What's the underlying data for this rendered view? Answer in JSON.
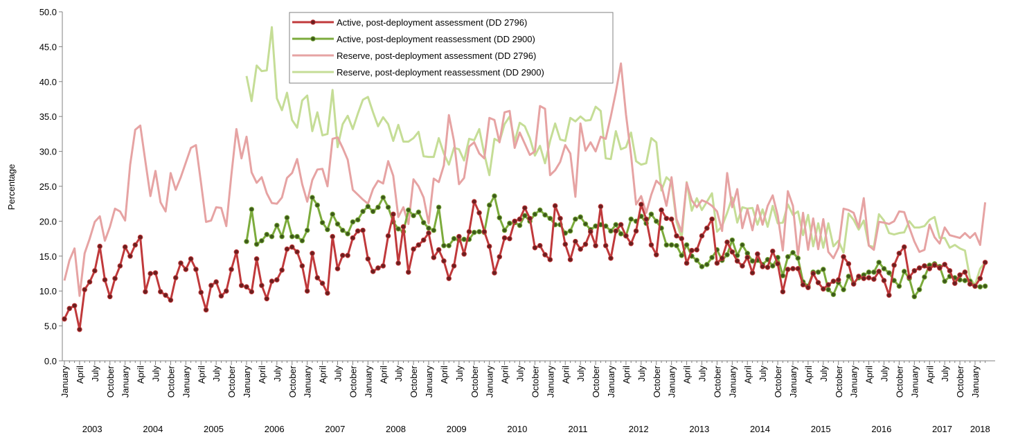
{
  "chart_data": {
    "type": "line",
    "y_label": "Percentage",
    "ylim": [
      0,
      50
    ],
    "yticks": [
      {
        "value": 0,
        "label": "0.0"
      },
      {
        "value": 5,
        "label": "5.0"
      },
      {
        "value": 10,
        "label": "10.0"
      },
      {
        "value": 15,
        "label": "15.0"
      },
      {
        "value": 20,
        "label": "20.0"
      },
      {
        "value": 25,
        "label": "25.0"
      },
      {
        "value": 30,
        "label": "30.0"
      },
      {
        "value": 35,
        "label": "35.0"
      },
      {
        "value": 40,
        "label": "40.0"
      },
      {
        "value": 45,
        "label": "45.0"
      },
      {
        "value": 50,
        "label": "50.0"
      }
    ],
    "grid": false,
    "legend": "top-center",
    "categories": [
      "January",
      null,
      null,
      "April",
      null,
      null,
      "July",
      null,
      null,
      "October",
      null,
      null,
      "January",
      null,
      null,
      "April",
      null,
      null,
      "July",
      null,
      null,
      "October",
      null,
      null,
      "January",
      null,
      null,
      "April",
      null,
      null,
      "July",
      null,
      null,
      "October",
      null,
      null,
      "January",
      null,
      null,
      "April",
      null,
      null,
      "July",
      null,
      null,
      "October",
      null,
      null,
      "January",
      null,
      null,
      "April",
      null,
      null,
      "July",
      null,
      null,
      "October",
      null,
      null,
      "January",
      null,
      null,
      "April",
      null,
      null,
      "July",
      null,
      null,
      "October",
      null,
      null,
      "January",
      null,
      null,
      "April",
      null,
      null,
      "July",
      null,
      null,
      "October",
      null,
      null,
      "January",
      null,
      null,
      "April",
      null,
      null,
      "July",
      null,
      null,
      "October",
      null,
      null,
      "January",
      null,
      null,
      "April",
      null,
      null,
      "July",
      null,
      null,
      "October",
      null,
      null,
      "January",
      null,
      null,
      "April",
      null,
      null,
      "July",
      null,
      null,
      "October",
      null,
      null,
      "January",
      null,
      null,
      "April",
      null,
      null,
      "July",
      null,
      null,
      "October",
      null,
      null,
      "January",
      null,
      null,
      "April",
      null,
      null,
      "July",
      null,
      null,
      "October",
      null,
      null,
      "January",
      null,
      null,
      "April",
      null,
      null,
      "July",
      null,
      null,
      "October",
      null,
      null,
      "January",
      null,
      null,
      "April",
      null,
      null,
      "July",
      null,
      null,
      "October",
      null,
      null,
      "January",
      null,
      null,
      "April",
      null,
      null,
      "July",
      null,
      null,
      "October",
      null,
      null,
      "January",
      null,
      null
    ],
    "years": [
      "2003",
      "2004",
      "2005",
      "2006",
      "2007",
      "2008",
      "2009",
      "2010",
      "2011",
      "2012",
      "2013",
      "2014",
      "2015",
      "2016",
      "2017",
      "2018"
    ],
    "series": [
      {
        "name": "Active, post-deployment assessment (DD 2796)",
        "color": "#c0393b",
        "marker_color": "#6b1f1f",
        "marker": true,
        "values": [
          6.0,
          7.5,
          7.9,
          4.5,
          10.2,
          11.3,
          12.9,
          16.4,
          11.6,
          9.2,
          11.8,
          13.6,
          16.3,
          15.0,
          16.6,
          17.7,
          9.9,
          12.5,
          12.6,
          9.9,
          9.4,
          8.7,
          11.9,
          14.0,
          13.1,
          14.6,
          13.1,
          9.8,
          7.3,
          10.8,
          11.3,
          9.3,
          10.0,
          13.1,
          15.6,
          10.8,
          10.6,
          9.9,
          14.6,
          10.8,
          8.9,
          11.4,
          11.6,
          13.0,
          16.0,
          16.3,
          15.6,
          13.6,
          10.0,
          15.4,
          11.9,
          11.1,
          9.7,
          17.8,
          13.2,
          15.1,
          15.1,
          17.6,
          18.6,
          18.7,
          14.6,
          12.8,
          13.3,
          13.6,
          17.9,
          21.0,
          14.0,
          19.2,
          12.7,
          16.0,
          16.6,
          17.3,
          18.3,
          14.8,
          15.9,
          14.3,
          11.8,
          13.6,
          17.8,
          15.3,
          18.5,
          22.8,
          21.2,
          18.5,
          16.4,
          12.6,
          14.9,
          17.6,
          17.5,
          20.0,
          20.3,
          21.9,
          20.4,
          16.2,
          16.5,
          15.2,
          14.5,
          22.2,
          20.4,
          16.7,
          14.5,
          17.1,
          16.0,
          16.7,
          18.5,
          16.5,
          22.1,
          16.5,
          14.7,
          18.6,
          19.5,
          17.9,
          16.8,
          18.6,
          22.4,
          20.3,
          16.6,
          15.2,
          21.6,
          20.4,
          20.3,
          17.9,
          17.5,
          14.0,
          15.8,
          15.9,
          17.9,
          19.0,
          20.3,
          14.0,
          14.7,
          17.0,
          15.6,
          14.3,
          13.6,
          14.8,
          12.6,
          15.3,
          13.5,
          13.4,
          15.7,
          13.9,
          9.9,
          13.1,
          13.2,
          13.2,
          10.9,
          10.5,
          12.5,
          11.2,
          10.3,
          10.9,
          11.4,
          11.6,
          14.9,
          13.9,
          11.0,
          12.1,
          11.8,
          11.9,
          11.7,
          12.8,
          11.5,
          9.4,
          13.7,
          15.4,
          16.3,
          12.0,
          12.9,
          13.3,
          13.6,
          13.2,
          13.7,
          13.3,
          13.8,
          12.9,
          11.1,
          12.3,
          12.7,
          11.0,
          10.7,
          11.8,
          14.1
        ]
      },
      {
        "name": "Active, post-deployment reassessment (DD 2900)",
        "color": "#7cab3c",
        "marker_color": "#3d5a1a",
        "marker": true,
        "values": [
          null,
          null,
          null,
          null,
          null,
          null,
          null,
          null,
          null,
          null,
          null,
          null,
          null,
          null,
          null,
          null,
          null,
          null,
          null,
          null,
          null,
          null,
          null,
          null,
          null,
          null,
          null,
          null,
          null,
          null,
          null,
          null,
          null,
          null,
          null,
          null,
          17.1,
          21.7,
          16.7,
          17.2,
          18.1,
          17.8,
          19.4,
          17.8,
          20.5,
          17.8,
          17.8,
          17.2,
          18.7,
          23.4,
          22.3,
          19.8,
          18.8,
          21.0,
          19.6,
          18.7,
          18.2,
          19.9,
          20.2,
          21.4,
          22.1,
          21.4,
          22.0,
          23.4,
          22.0,
          19.9,
          18.9,
          18.5,
          21.6,
          20.8,
          21.3,
          19.8,
          19.0,
          18.7,
          22.0,
          16.5,
          16.5,
          17.5,
          17.3,
          17.4,
          17.4,
          18.4,
          18.5,
          18.4,
          22.3,
          23.6,
          20.5,
          18.7,
          19.7,
          19.8,
          19.4,
          20.8,
          20.0,
          21.0,
          21.6,
          20.9,
          20.4,
          19.5,
          19.5,
          18.3,
          18.6,
          20.3,
          20.6,
          19.6,
          18.8,
          19.3,
          19.5,
          19.3,
          18.6,
          19.5,
          18.2,
          17.9,
          20.3,
          20.0,
          20.7,
          19.7,
          21.0,
          20.0,
          19.0,
          16.6,
          16.6,
          16.5,
          15.1,
          16.6,
          15.0,
          14.4,
          13.5,
          13.8,
          14.8,
          15.9,
          14.4,
          15.2,
          17.3,
          15.1,
          16.6,
          15.4,
          14.3,
          14.4,
          13.8,
          14.5,
          13.6,
          14.8,
          12.2,
          14.9,
          15.5,
          14.7,
          11.3,
          10.7,
          12.7,
          12.7,
          13.1,
          10.2,
          9.5,
          11.2,
          10.2,
          12.1,
          11.1,
          11.9,
          12.3,
          12.7,
          12.7,
          14.1,
          13.2,
          12.6,
          11.5,
          10.7,
          12.8,
          11.8,
          9.2,
          10.2,
          12.0,
          13.7,
          13.9,
          13.5,
          11.4,
          12.1,
          11.9,
          11.6,
          11.5,
          11.4,
          10.7,
          10.6,
          10.7
        ]
      },
      {
        "name": "Reserve, post-deployment assessment (DD 2796)",
        "color": "#e6a3a3",
        "marker": false,
        "values": [
          11.5,
          14.4,
          16.1,
          9.3,
          15.4,
          17.5,
          19.9,
          20.7,
          17.2,
          19.2,
          21.8,
          21.4,
          20.1,
          28.1,
          33.1,
          33.7,
          28.6,
          23.6,
          27.2,
          22.7,
          21.4,
          26.9,
          24.5,
          26.3,
          28.4,
          30.5,
          30.9,
          25.5,
          19.9,
          20.1,
          22.0,
          21.9,
          19.3,
          26.6,
          33.2,
          29.0,
          32.1,
          27.0,
          25.5,
          26.3,
          24.0,
          22.6,
          22.5,
          23.4,
          26.2,
          26.9,
          28.9,
          25.3,
          22.8,
          25.9,
          27.4,
          27.5,
          25.0,
          31.8,
          32.0,
          30.5,
          28.8,
          24.5,
          23.8,
          23.1,
          22.5,
          24.6,
          25.8,
          25.4,
          28.6,
          26.5,
          20.6,
          22.0,
          19.6,
          26.0,
          25.0,
          23.4,
          19.7,
          26.1,
          25.6,
          28.0,
          35.2,
          31.5,
          25.3,
          26.2,
          30.7,
          31.3,
          29.7,
          29.0,
          34.8,
          34.5,
          31.3,
          35.6,
          35.8,
          30.5,
          32.7,
          31.1,
          29.5,
          30.0,
          36.5,
          36.1,
          26.6,
          27.3,
          28.5,
          30.9,
          29.7,
          23.5,
          34.0,
          30.1,
          31.3,
          30.0,
          32.1,
          31.8,
          35.0,
          38.5,
          42.6,
          35.3,
          29.5,
          22.4,
          23.6,
          21.2,
          23.8,
          25.8,
          25.1,
          22.2,
          26.3,
          20.3,
          18.5,
          25.5,
          23.0,
          22.0,
          23.0,
          22.7,
          22.2,
          21.4,
          18.6,
          26.9,
          22.0,
          24.6,
          19.0,
          21.7,
          18.7,
          22.3,
          19.5,
          22.2,
          23.7,
          20.8,
          15.8,
          24.3,
          22.2,
          15.0,
          21.2,
          15.9,
          20.4,
          16.0,
          20.3,
          15.6,
          14.7,
          16.2,
          21.8,
          21.6,
          21.2,
          19.1,
          23.3,
          16.5,
          15.9,
          19.9,
          19.8,
          19.6,
          20.0,
          21.4,
          21.3,
          19.1,
          17.1,
          15.6,
          15.9,
          19.5,
          17.7,
          16.8,
          19.1,
          18.0,
          17.8,
          17.6,
          18.3,
          17.6,
          18.3,
          16.6,
          22.7
        ]
      },
      {
        "name": "Reserve, post-deployment reassessment (DD 2900)",
        "color": "#c5dd96",
        "marker": false,
        "values": [
          null,
          null,
          null,
          null,
          null,
          null,
          null,
          null,
          null,
          null,
          null,
          null,
          null,
          null,
          null,
          null,
          null,
          null,
          null,
          null,
          null,
          null,
          null,
          null,
          null,
          null,
          null,
          null,
          null,
          null,
          null,
          null,
          null,
          null,
          null,
          null,
          40.8,
          37.2,
          42.3,
          41.5,
          41.6,
          47.8,
          37.6,
          35.9,
          38.4,
          34.5,
          33.4,
          37.3,
          38.0,
          32.9,
          35.6,
          32.3,
          32.5,
          38.8,
          30.6,
          33.9,
          35.1,
          33.2,
          35.4,
          37.4,
          37.8,
          35.6,
          33.6,
          34.9,
          33.9,
          31.5,
          33.8,
          31.4,
          31.4,
          31.9,
          32.8,
          29.3,
          29.2,
          29.2,
          31.9,
          29.7,
          28.1,
          30.5,
          30.3,
          28.7,
          31.8,
          31.6,
          33.2,
          29.6,
          26.6,
          31.8,
          31.4,
          33.9,
          35.0,
          31.4,
          34.1,
          33.6,
          31.9,
          29.4,
          30.8,
          28.3,
          31.5,
          34.0,
          31.7,
          31.5,
          34.8,
          34.3,
          35.0,
          34.4,
          34.5,
          36.4,
          35.8,
          29.0,
          28.9,
          32.9,
          30.3,
          30.6,
          32.7,
          28.6,
          28.1,
          28.3,
          31.9,
          31.3,
          24.4,
          26.3,
          25.6,
          19.9,
          17.6,
          25.6,
          21.5,
          23.3,
          21.6,
          22.8,
          24.0,
          18.5,
          19.3,
          21.2,
          23.4,
          19.8,
          22.0,
          21.8,
          21.9,
          19.5,
          21.7,
          19.2,
          22.2,
          19.7,
          19.8,
          22.4,
          20.9,
          21.4,
          18.0,
          20.9,
          16.4,
          19.7,
          16.2,
          19.7,
          16.4,
          17.2,
          15.5,
          21.1,
          20.2,
          18.8,
          20.1,
          16.5,
          16.3,
          21.0,
          20.1,
          18.3,
          18.1,
          18.3,
          18.4,
          20.0,
          19.1,
          19.1,
          19.3,
          20.2,
          20.6,
          17.6,
          17.6,
          16.2,
          16.6,
          16.1,
          15.8,
          11.8,
          10.9,
          13.2,
          14.1
        ]
      }
    ]
  }
}
